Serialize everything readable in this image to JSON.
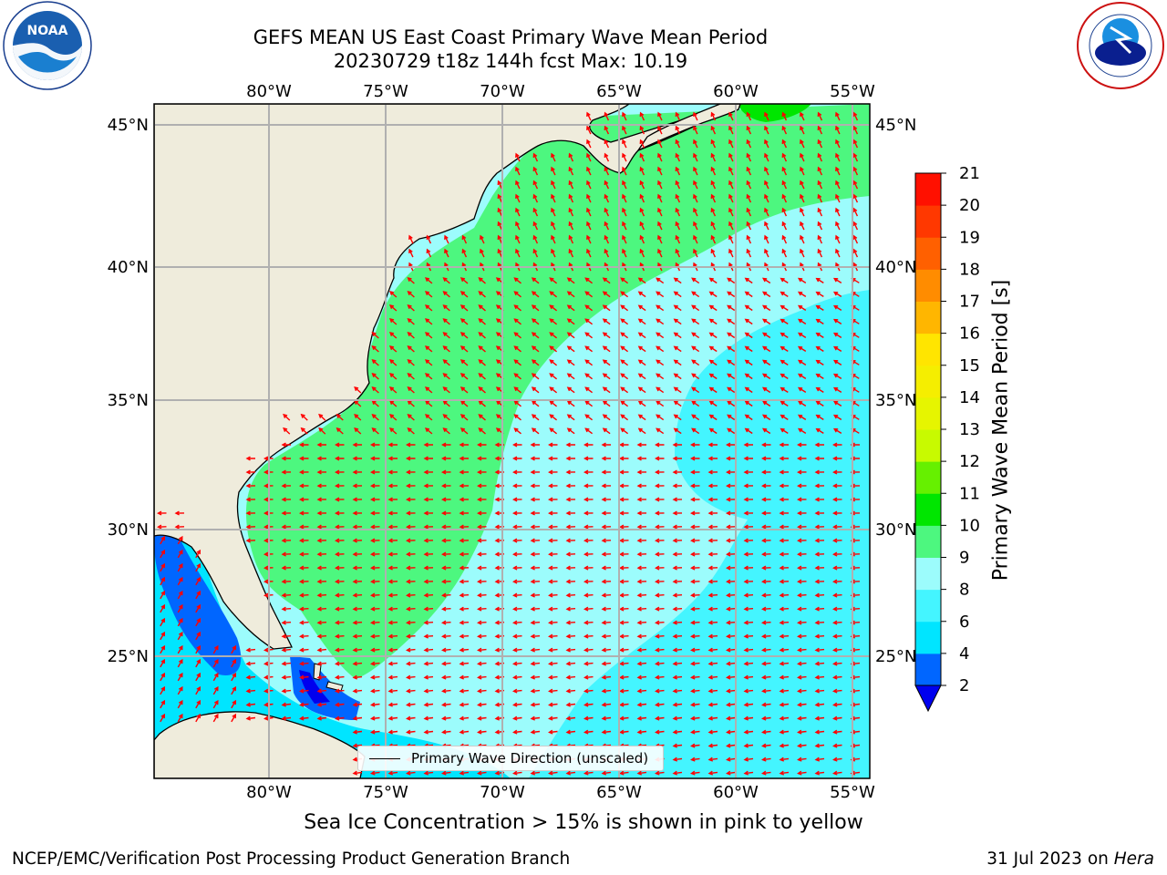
{
  "title": {
    "line1": "GEFS MEAN US East Coast Primary Wave Mean Period",
    "line2": "20230729 t18z 144h fcst   Max: 10.19"
  },
  "map": {
    "lon_range": [
      -85,
      -54
    ],
    "lat_range": [
      20.5,
      46
    ],
    "lon_ticks": [
      "80°W",
      "75°W",
      "70°W",
      "65°W",
      "60°W",
      "55°W"
    ],
    "lat_ticks": [
      "25°N",
      "30°N",
      "35°N",
      "40°N",
      "45°N"
    ],
    "gridlines": true,
    "land_color": "#efecdc",
    "arrow_color": "#ff0000"
  },
  "legend": {
    "label": "Primary Wave Direction (unscaled)",
    "position": "bottom-center"
  },
  "colorbar": {
    "label": "Primary Wave Mean Period [s]",
    "ticks": [
      "2",
      "4",
      "6",
      "8",
      "9",
      "10",
      "11",
      "12",
      "13",
      "14",
      "15",
      "16",
      "17",
      "18",
      "19",
      "20",
      "21"
    ],
    "colors": [
      "#0066ff",
      "#00e5ff",
      "#44f5ff",
      "#9cfcfc",
      "#4df77f",
      "#00e600",
      "#66f000",
      "#c8fa00",
      "#e6f500",
      "#f5ee00",
      "#ffe500",
      "#ffb600",
      "#ff8c00",
      "#ff6000",
      "#ff3800",
      "#ff1000"
    ],
    "extend_color": "#0000ee"
  },
  "note": "Sea Ice Concentration > 15% is shown in pink to yellow",
  "footer": {
    "left": "NCEP/EMC/Verification Post Processing Product Generation Branch",
    "date": "31 Jul 2023 on ",
    "machine": "Hera"
  },
  "logos": {
    "noaa": {
      "text": "NOAA",
      "icon": "noaa-logo-icon"
    },
    "nws": {
      "text": "NATIONAL WEATHER SERVICE",
      "icon": "nws-logo-icon"
    }
  }
}
